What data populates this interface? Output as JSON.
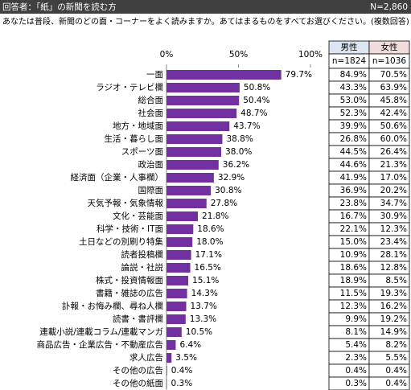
{
  "header": {
    "left": "回答者：「紙」の新聞を読む方",
    "right": "N=2,860",
    "question": "あなたは普段、新聞のどの面・コーナーをよく読みますか。あてはまるものをすべてお選びください。(複数回答)"
  },
  "chart_data": {
    "type": "bar",
    "orientation": "horizontal",
    "color": "#7030a0",
    "categories": [
      "一面",
      "ラジオ・テレビ欄",
      "総合面",
      "社会面",
      "地方・地域面",
      "生活・暮らし面",
      "スポーツ面",
      "政治面",
      "経済面（企業・人事欄）",
      "国際面",
      "天気予報・気象情報",
      "文化・芸能面",
      "科学・技術・IT面",
      "土日などの別刷り特集",
      "読者投稿欄",
      "論説・社説",
      "株式・投資情報面",
      "書籍・雑誌の広告",
      "訃報・お悔み欄、尋ね人欄",
      "読書・書評欄",
      "連載小説/連載コラム/連載マンガ",
      "商品広告・企業広告・不動産広告",
      "求人広告",
      "その他の広告",
      "その他の紙面"
    ],
    "values": [
      79.7,
      50.8,
      50.4,
      48.7,
      43.7,
      38.8,
      38.0,
      36.2,
      32.9,
      30.8,
      27.8,
      21.8,
      18.6,
      18.0,
      17.1,
      16.5,
      15.1,
      14.3,
      13.7,
      13.3,
      10.5,
      6.4,
      3.5,
      0.4,
      0.3
    ],
    "value_labels": [
      "79.7%",
      "50.8%",
      "50.4%",
      "48.7%",
      "43.7%",
      "38.8%",
      "38.0%",
      "36.2%",
      "32.9%",
      "30.8%",
      "27.8%",
      "21.8%",
      "18.6%",
      "18.0%",
      "17.1%",
      "16.5%",
      "15.1%",
      "14.3%",
      "13.7%",
      "13.3%",
      "10.5%",
      "6.4%",
      "3.5%",
      "0.4%",
      "0.3%"
    ],
    "xlim": [
      0,
      100
    ],
    "xticks": [
      {
        "value": 0,
        "label": "0%"
      },
      {
        "value": 50,
        "label": "50%"
      },
      {
        "value": 100,
        "label": "100%"
      }
    ],
    "grid": false
  },
  "table": {
    "headers": [
      "男性",
      "女性"
    ],
    "n": [
      "n=1824",
      "n=1036"
    ],
    "rows": [
      [
        "84.9%",
        "70.5%"
      ],
      [
        "43.3%",
        "63.9%"
      ],
      [
        "53.0%",
        "45.8%"
      ],
      [
        "52.3%",
        "42.4%"
      ],
      [
        "39.9%",
        "50.6%"
      ],
      [
        "26.8%",
        "60.0%"
      ],
      [
        "44.5%",
        "26.4%"
      ],
      [
        "44.6%",
        "21.3%"
      ],
      [
        "41.9%",
        "17.0%"
      ],
      [
        "36.9%",
        "20.2%"
      ],
      [
        "23.8%",
        "34.7%"
      ],
      [
        "16.7%",
        "30.9%"
      ],
      [
        "22.1%",
        "12.3%"
      ],
      [
        "15.0%",
        "23.4%"
      ],
      [
        "10.9%",
        "28.1%"
      ],
      [
        "18.6%",
        "12.8%"
      ],
      [
        "18.9%",
        "8.5%"
      ],
      [
        "11.5%",
        "19.3%"
      ],
      [
        "12.3%",
        "16.2%"
      ],
      [
        "9.9%",
        "19.2%"
      ],
      [
        "8.1%",
        "14.9%"
      ],
      [
        "5.4%",
        "8.2%"
      ],
      [
        "2.3%",
        "5.5%"
      ],
      [
        "0.4%",
        "0.4%"
      ],
      [
        "0.3%",
        "0.4%"
      ]
    ]
  }
}
